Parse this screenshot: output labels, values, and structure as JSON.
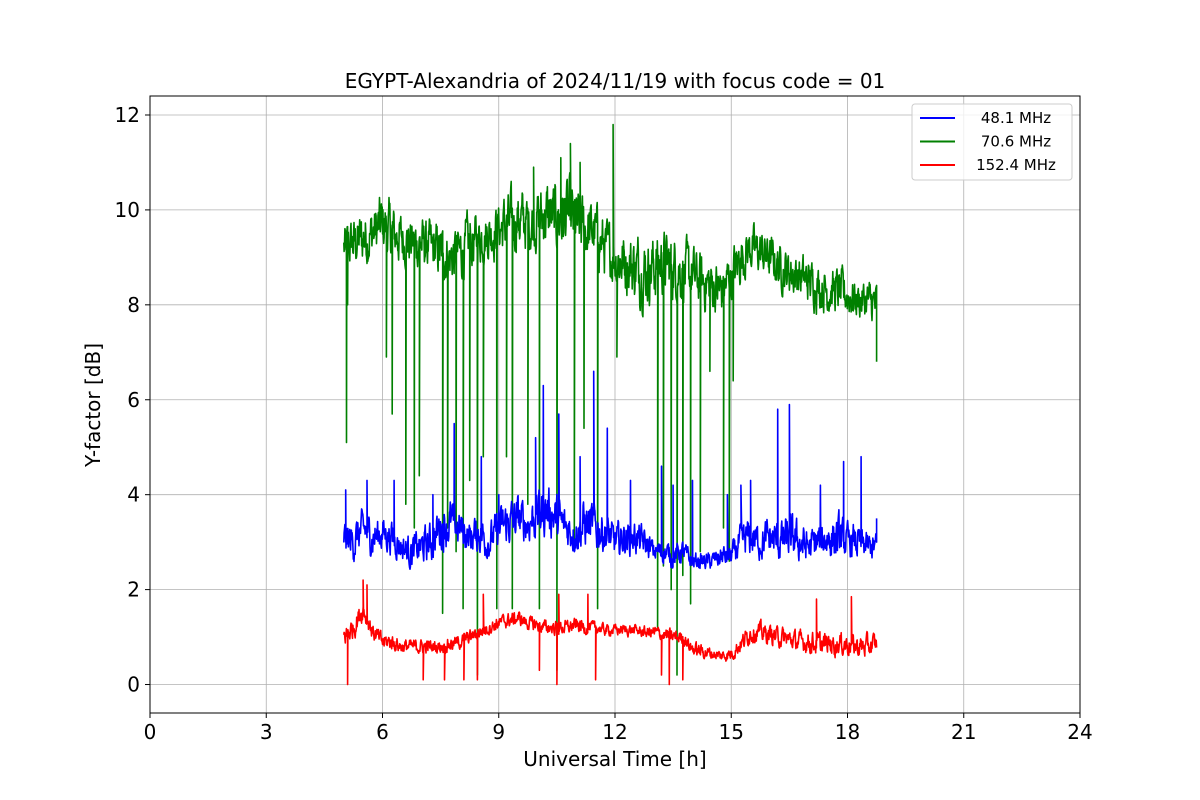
{
  "chart_data": {
    "type": "line",
    "title": "EGYPT-Alexandria of 2024/11/19 with focus code = 01",
    "xlabel": "Universal Time [h]",
    "ylabel": "Y-factor [dB]",
    "xlim": [
      0,
      24
    ],
    "ylim": [
      -0.6,
      12.4
    ],
    "xticks": [
      0,
      3,
      6,
      9,
      12,
      15,
      18,
      21,
      24
    ],
    "xtick_labels": [
      "0",
      "3",
      "6",
      "9",
      "12",
      "15",
      "18",
      "21",
      "24"
    ],
    "yticks": [
      0,
      2,
      4,
      6,
      8,
      10,
      12
    ],
    "ytick_labels": [
      "0",
      "2",
      "4",
      "6",
      "8",
      "10",
      "12"
    ],
    "grid": true,
    "legend_position": "top-right",
    "series": [
      {
        "name": "48.1 MHz",
        "label": " 48.1 MHz",
        "color": "#0000ff",
        "x": [
          5.0,
          5.25,
          5.5,
          5.75,
          6.0,
          6.25,
          6.5,
          6.75,
          7.0,
          7.25,
          7.5,
          7.75,
          8.0,
          8.25,
          8.5,
          8.75,
          9.0,
          9.25,
          9.5,
          9.75,
          10.0,
          10.25,
          10.5,
          10.75,
          11.0,
          11.25,
          11.5,
          11.75,
          12.0,
          12.25,
          12.5,
          12.75,
          13.0,
          13.25,
          13.5,
          13.75,
          14.0,
          14.25,
          14.5,
          14.75,
          15.0,
          15.25,
          15.5,
          15.75,
          16.0,
          16.25,
          16.5,
          16.75,
          17.0,
          17.25,
          17.5,
          17.75,
          18.0,
          18.25,
          18.5,
          18.75
        ],
        "y": [
          3.1,
          3.0,
          3.3,
          3.1,
          3.2,
          3.1,
          2.9,
          2.8,
          2.9,
          3.0,
          3.3,
          3.4,
          3.3,
          3.1,
          3.2,
          3.0,
          3.3,
          3.4,
          3.5,
          3.4,
          3.6,
          3.7,
          3.5,
          3.3,
          3.2,
          3.4,
          3.3,
          3.2,
          3.0,
          3.1,
          3.1,
          3.0,
          2.8,
          2.8,
          2.7,
          2.8,
          2.6,
          2.6,
          2.6,
          2.7,
          2.7,
          3.0,
          3.1,
          3.0,
          3.1,
          3.0,
          3.1,
          3.0,
          2.9,
          3.0,
          3.1,
          3.1,
          3.0,
          3.0,
          2.9,
          2.9
        ],
        "spread": [
          0.6,
          0.7,
          0.6,
          0.7,
          0.6,
          0.6,
          0.5,
          0.6,
          0.6,
          0.7,
          0.8,
          0.8,
          0.7,
          0.6,
          0.7,
          0.6,
          0.7,
          0.8,
          0.8,
          0.7,
          0.9,
          0.9,
          0.8,
          0.7,
          0.7,
          0.9,
          0.8,
          0.7,
          0.6,
          0.6,
          0.6,
          0.5,
          0.4,
          0.4,
          0.4,
          0.4,
          0.3,
          0.3,
          0.3,
          0.4,
          0.4,
          0.6,
          0.7,
          0.6,
          0.7,
          0.7,
          0.8,
          0.7,
          0.6,
          0.7,
          0.8,
          0.8,
          0.6,
          0.6,
          0.5,
          0.5
        ],
        "spikes": [
          [
            5.05,
            4.1
          ],
          [
            5.6,
            4.3
          ],
          [
            6.3,
            4.3
          ],
          [
            7.3,
            4.0
          ],
          [
            7.85,
            5.5
          ],
          [
            8.55,
            4.8
          ],
          [
            9.0,
            4.0
          ],
          [
            9.95,
            5.2
          ],
          [
            10.15,
            6.3
          ],
          [
            10.55,
            5.7
          ],
          [
            11.1,
            4.8
          ],
          [
            11.45,
            6.6
          ],
          [
            11.8,
            5.4
          ],
          [
            12.4,
            4.3
          ],
          [
            13.2,
            4.6
          ],
          [
            13.5,
            4.2
          ],
          [
            14.0,
            4.3
          ],
          [
            14.9,
            4.0
          ],
          [
            15.25,
            4.2
          ],
          [
            15.5,
            4.3
          ],
          [
            16.2,
            5.8
          ],
          [
            16.5,
            5.9
          ],
          [
            17.3,
            4.2
          ],
          [
            17.9,
            4.7
          ],
          [
            18.35,
            4.8
          ],
          [
            18.75,
            3.5
          ]
        ]
      },
      {
        "name": "70.6 MHz",
        "label": " 70.6 MHz",
        "color": "#008000",
        "x": [
          5.0,
          5.25,
          5.5,
          5.75,
          6.0,
          6.25,
          6.5,
          6.75,
          7.0,
          7.25,
          7.5,
          7.75,
          8.0,
          8.25,
          8.5,
          8.75,
          9.0,
          9.25,
          9.5,
          9.75,
          10.0,
          10.25,
          10.5,
          10.75,
          11.0,
          11.25,
          11.5,
          11.75,
          12.0,
          12.25,
          12.5,
          12.75,
          13.0,
          13.25,
          13.5,
          13.75,
          14.0,
          14.25,
          14.5,
          14.75,
          15.0,
          15.25,
          15.5,
          15.75,
          16.0,
          16.25,
          16.5,
          16.75,
          17.0,
          17.25,
          17.5,
          17.75,
          18.0,
          18.25,
          18.5,
          18.75
        ],
        "y": [
          9.2,
          9.3,
          9.4,
          9.5,
          9.7,
          9.5,
          9.4,
          9.3,
          9.3,
          9.2,
          9.1,
          9.0,
          9.1,
          9.3,
          9.4,
          9.5,
          9.6,
          9.7,
          9.8,
          9.7,
          9.8,
          9.9,
          9.8,
          9.9,
          9.7,
          9.6,
          9.5,
          9.2,
          9.0,
          8.9,
          8.8,
          8.7,
          8.8,
          8.9,
          8.8,
          8.7,
          8.6,
          8.5,
          8.4,
          8.3,
          8.6,
          9.0,
          9.2,
          9.1,
          9.0,
          8.8,
          8.7,
          8.6,
          8.5,
          8.4,
          8.3,
          8.3,
          8.2,
          8.1,
          8.1,
          8.0
        ],
        "spread": [
          0.8,
          0.9,
          1.0,
          1.0,
          1.1,
          1.0,
          0.9,
          0.9,
          0.9,
          0.9,
          1.0,
          1.0,
          1.0,
          1.0,
          0.9,
          0.9,
          1.0,
          1.1,
          1.1,
          1.0,
          1.1,
          1.2,
          1.2,
          1.3,
          1.2,
          1.1,
          1.1,
          1.0,
          1.0,
          1.1,
          1.2,
          1.2,
          1.2,
          1.1,
          1.1,
          1.1,
          1.0,
          1.0,
          1.0,
          1.0,
          0.9,
          0.9,
          0.8,
          0.8,
          0.8,
          0.8,
          0.8,
          0.8,
          0.8,
          0.8,
          0.8,
          0.8,
          0.8,
          0.7,
          0.7,
          0.8
        ],
        "spikes": [
          [
            10.6,
            11.1
          ],
          [
            10.85,
            11.4
          ],
          [
            11.95,
            11.8
          ],
          [
            11.1,
            11.0
          ],
          [
            9.9,
            10.9
          ]
        ],
        "dropouts": [
          [
            5.07,
            5.1
          ],
          [
            5.1,
            8.0
          ],
          [
            6.1,
            6.9
          ],
          [
            6.25,
            5.7
          ],
          [
            6.6,
            3.8
          ],
          [
            6.82,
            3.3
          ],
          [
            6.95,
            4.4
          ],
          [
            7.55,
            1.5
          ],
          [
            7.68,
            3.3
          ],
          [
            7.9,
            2.8
          ],
          [
            8.08,
            1.6
          ],
          [
            8.25,
            4.3
          ],
          [
            8.45,
            0.2
          ],
          [
            8.6,
            4.8
          ],
          [
            8.95,
            1.6
          ],
          [
            9.2,
            4.8
          ],
          [
            9.35,
            1.6
          ],
          [
            9.75,
            3.8
          ],
          [
            10.05,
            1.6
          ],
          [
            10.5,
            0.3
          ],
          [
            10.95,
            3.0
          ],
          [
            11.2,
            5.4
          ],
          [
            11.55,
            1.6
          ],
          [
            12.05,
            6.9
          ],
          [
            13.1,
            1.2
          ],
          [
            13.25,
            2.5
          ],
          [
            13.45,
            2.0
          ],
          [
            13.6,
            0.2
          ],
          [
            13.75,
            2.3
          ],
          [
            13.95,
            1.7
          ],
          [
            14.2,
            2.8
          ],
          [
            14.45,
            6.6
          ],
          [
            14.8,
            3.3
          ],
          [
            14.95,
            2.6
          ],
          [
            15.05,
            6.4
          ],
          [
            18.75,
            6.8
          ]
        ]
      },
      {
        "name": "152.4 MHz",
        "label": "152.4 MHz",
        "color": "#ff0000",
        "x": [
          5.0,
          5.25,
          5.5,
          5.75,
          6.0,
          6.25,
          6.5,
          6.75,
          7.0,
          7.25,
          7.5,
          7.75,
          8.0,
          8.25,
          8.5,
          8.75,
          9.0,
          9.25,
          9.5,
          9.75,
          10.0,
          10.25,
          10.5,
          10.75,
          11.0,
          11.25,
          11.5,
          11.75,
          12.0,
          12.25,
          12.5,
          12.75,
          13.0,
          13.25,
          13.5,
          13.75,
          14.0,
          14.25,
          14.5,
          14.75,
          15.0,
          15.25,
          15.5,
          15.75,
          16.0,
          16.25,
          16.5,
          16.75,
          17.0,
          17.25,
          17.5,
          17.75,
          18.0,
          18.25,
          18.5,
          18.75
        ],
        "y": [
          1.0,
          1.2,
          1.6,
          1.1,
          0.9,
          0.9,
          0.8,
          0.8,
          0.8,
          0.8,
          0.8,
          0.85,
          0.9,
          1.0,
          1.1,
          1.2,
          1.3,
          1.35,
          1.4,
          1.3,
          1.25,
          1.2,
          1.2,
          1.2,
          1.25,
          1.2,
          1.2,
          1.15,
          1.15,
          1.15,
          1.15,
          1.1,
          1.1,
          1.05,
          1.0,
          1.0,
          0.75,
          0.7,
          0.65,
          0.6,
          0.65,
          0.85,
          1.1,
          1.1,
          1.05,
          1.0,
          0.95,
          0.9,
          0.9,
          0.85,
          0.85,
          0.85,
          0.85,
          0.8,
          0.8,
          0.85
        ],
        "spread": [
          0.4,
          0.4,
          0.4,
          0.3,
          0.3,
          0.3,
          0.25,
          0.25,
          0.25,
          0.25,
          0.25,
          0.25,
          0.25,
          0.25,
          0.25,
          0.25,
          0.25,
          0.25,
          0.25,
          0.25,
          0.25,
          0.25,
          0.25,
          0.25,
          0.25,
          0.25,
          0.2,
          0.2,
          0.2,
          0.2,
          0.2,
          0.2,
          0.25,
          0.25,
          0.25,
          0.25,
          0.25,
          0.25,
          0.2,
          0.2,
          0.25,
          0.3,
          0.35,
          0.35,
          0.35,
          0.35,
          0.35,
          0.35,
          0.4,
          0.4,
          0.4,
          0.4,
          0.4,
          0.4,
          0.4,
          0.4
        ],
        "spikes": [
          [
            5.5,
            2.2
          ],
          [
            5.6,
            2.1
          ],
          [
            8.6,
            1.9
          ],
          [
            10.55,
            1.9
          ],
          [
            11.3,
            1.9
          ],
          [
            18.1,
            1.85
          ],
          [
            17.2,
            1.8
          ]
        ],
        "dropouts": [
          [
            5.1,
            0.0
          ],
          [
            7.05,
            0.1
          ],
          [
            7.6,
            0.1
          ],
          [
            8.1,
            0.1
          ],
          [
            8.45,
            0.1
          ],
          [
            10.5,
            0.0
          ],
          [
            10.05,
            0.3
          ],
          [
            11.5,
            0.1
          ],
          [
            13.2,
            0.2
          ],
          [
            13.4,
            0.0
          ],
          [
            13.75,
            0.1
          ]
        ]
      }
    ]
  }
}
